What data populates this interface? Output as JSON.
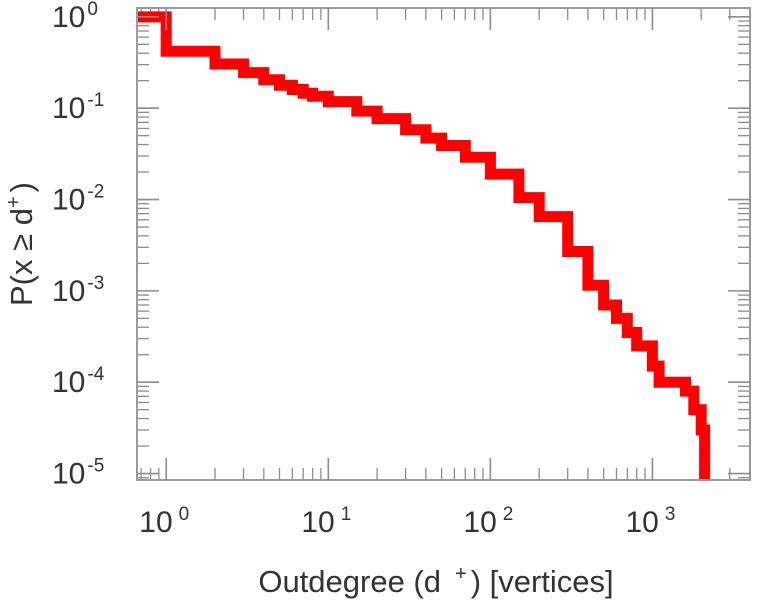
{
  "chart_data": {
    "type": "line",
    "scale": {
      "x": "log",
      "y": "log"
    },
    "xlabel": "Outdegree (d⁺) [vertices]",
    "ylabel": "P(x ≥ d⁺)",
    "xlabel_parts": {
      "pre": "Outdegree (d",
      "sup": "+",
      "post": ") [vertices]"
    },
    "ylabel_parts": {
      "pre": "P(x ≥ d",
      "sup": "+",
      "post": ")"
    },
    "xlim": [
      0.66,
      4000
    ],
    "ylim": [
      8.5e-06,
      1.25
    ],
    "x_ticks": [
      {
        "value": 1,
        "base": "10",
        "exp": "0"
      },
      {
        "value": 10,
        "base": "10",
        "exp": "1"
      },
      {
        "value": 100,
        "base": "10",
        "exp": "2"
      },
      {
        "value": 1000,
        "base": "10",
        "exp": "3"
      }
    ],
    "y_ticks": [
      {
        "value": 1,
        "base": "10",
        "exp": "0"
      },
      {
        "value": 0.1,
        "base": "10",
        "exp": "-1"
      },
      {
        "value": 0.01,
        "base": "10",
        "exp": "-2"
      },
      {
        "value": 0.001,
        "base": "10",
        "exp": "-3"
      },
      {
        "value": 0.0001,
        "base": "10",
        "exp": "-4"
      },
      {
        "value": 1e-05,
        "base": "10",
        "exp": "-5"
      }
    ],
    "grid": false,
    "legend": "none",
    "series": [
      {
        "color": "#ff0000",
        "step": true,
        "points": [
          [
            0.66,
            1.0
          ],
          [
            1,
            0.42
          ],
          [
            2,
            0.305
          ],
          [
            3,
            0.245
          ],
          [
            4,
            0.205
          ],
          [
            5,
            0.178
          ],
          [
            6,
            0.16
          ],
          [
            7,
            0.146
          ],
          [
            8,
            0.135
          ],
          [
            10,
            0.118
          ],
          [
            15,
            0.093
          ],
          [
            20,
            0.077
          ],
          [
            30,
            0.058
          ],
          [
            40,
            0.047
          ],
          [
            50,
            0.039
          ],
          [
            70,
            0.029
          ],
          [
            100,
            0.019
          ],
          [
            150,
            0.0105
          ],
          [
            200,
            0.0065
          ],
          [
            300,
            0.0027
          ],
          [
            400,
            0.00115
          ],
          [
            500,
            0.0007
          ],
          [
            600,
            0.0005
          ],
          [
            700,
            0.00035
          ],
          [
            800,
            0.00025
          ],
          [
            1000,
            0.00015
          ],
          [
            1100,
            0.0001
          ],
          [
            1400,
            0.0001
          ],
          [
            1600,
            8e-05
          ],
          [
            1800,
            5e-05
          ],
          [
            2000,
            3e-05
          ],
          [
            2100,
            8.5e-06
          ]
        ]
      }
    ]
  }
}
